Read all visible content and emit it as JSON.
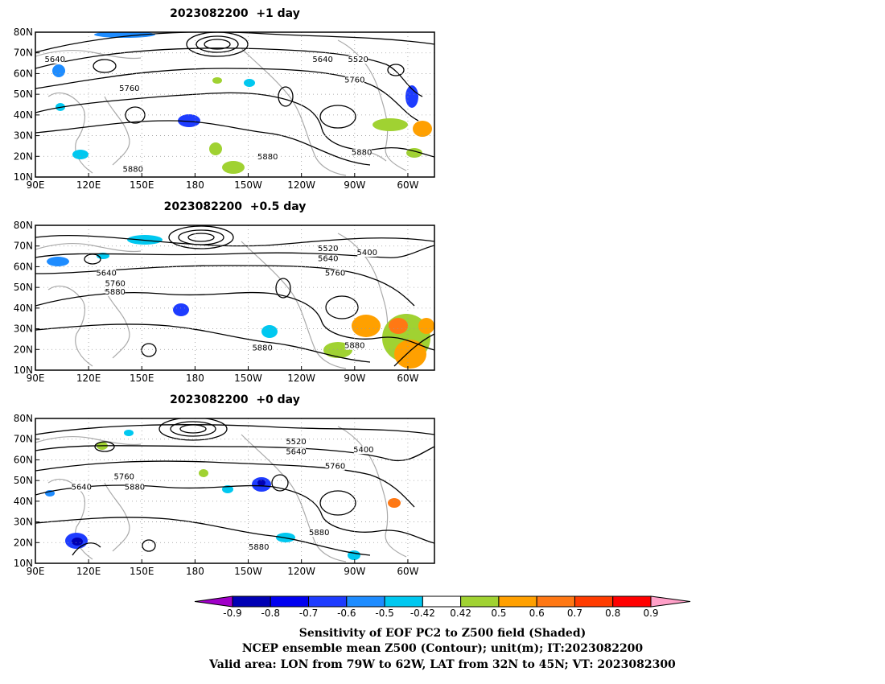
{
  "panels": [
    {
      "title": "2023082200  +1 day",
      "contour_labels": [
        {
          "value": "5640",
          "lon": 101,
          "lat": 66
        },
        {
          "value": "5640",
          "lon": 252,
          "lat": 66
        },
        {
          "value": "5520",
          "lon": 272,
          "lat": 66
        },
        {
          "value": "5760",
          "lon": 270,
          "lat": 56
        },
        {
          "value": "5760",
          "lon": 143,
          "lat": 52
        },
        {
          "value": "5880",
          "lon": 221,
          "lat": 19
        },
        {
          "value": "5880",
          "lon": 274,
          "lat": 21
        },
        {
          "value": "5880",
          "lon": 145,
          "lat": 13
        }
      ]
    },
    {
      "title": "2023082200  +0.5 day",
      "contour_labels": [
        {
          "value": "5520",
          "lon": 255,
          "lat": 68
        },
        {
          "value": "5640",
          "lon": 255,
          "lat": 63
        },
        {
          "value": "5400",
          "lon": 277,
          "lat": 66
        },
        {
          "value": "5640",
          "lon": 130,
          "lat": 56
        },
        {
          "value": "5760",
          "lon": 135,
          "lat": 51
        },
        {
          "value": "5880",
          "lon": 135,
          "lat": 47
        },
        {
          "value": "5760",
          "lon": 259,
          "lat": 56
        },
        {
          "value": "5880",
          "lon": 218,
          "lat": 20
        },
        {
          "value": "5880",
          "lon": 270,
          "lat": 21
        }
      ]
    },
    {
      "title": "2023082200  +0 day",
      "contour_labels": [
        {
          "value": "5520",
          "lon": 237,
          "lat": 68
        },
        {
          "value": "5640",
          "lon": 237,
          "lat": 63
        },
        {
          "value": "5400",
          "lon": 275,
          "lat": 64
        },
        {
          "value": "5760",
          "lon": 259,
          "lat": 56
        },
        {
          "value": "5760",
          "lon": 140,
          "lat": 51
        },
        {
          "value": "5880",
          "lon": 146,
          "lat": 46
        },
        {
          "value": "5640",
          "lon": 116,
          "lat": 46
        },
        {
          "value": "5880",
          "lon": 250,
          "lat": 24
        },
        {
          "value": "5880",
          "lon": 216,
          "lat": 17
        }
      ]
    }
  ],
  "axes": {
    "lon_ticks": [
      "90E",
      "120E",
      "150E",
      "180",
      "150W",
      "120W",
      "90W",
      "60W"
    ],
    "lat_ticks": [
      "10N",
      "20N",
      "30N",
      "40N",
      "50N",
      "60N",
      "70N",
      "80N"
    ],
    "lon_range": [
      90,
      315
    ],
    "lat_range": [
      10,
      80
    ]
  },
  "colorbar": {
    "labels": [
      "-0.9",
      "-0.8",
      "-0.7",
      "-0.6",
      "-0.5",
      "-0.42",
      "0.42",
      "0.5",
      "0.6",
      "0.7",
      "0.8",
      "0.9"
    ],
    "colors": [
      "#a000c8",
      "#0000b4",
      "#0000f0",
      "#1e3cff",
      "#1e8cff",
      "#00c8f0",
      "#ffffff",
      "#a0d232",
      "#ffa000",
      "#ff7814",
      "#ff3c00",
      "#ff0000",
      "#ffa0c8"
    ]
  },
  "caption": {
    "line1": "Sensitivity of EOF PC2 to Z500 field (Shaded)",
    "line2": "NCEP ensemble mean Z500 (Contour); unit(m); IT:2023082200",
    "line3": "Valid area: LON from 79W to 62W, LAT from 32N to 45N; VT: 2023082300"
  }
}
